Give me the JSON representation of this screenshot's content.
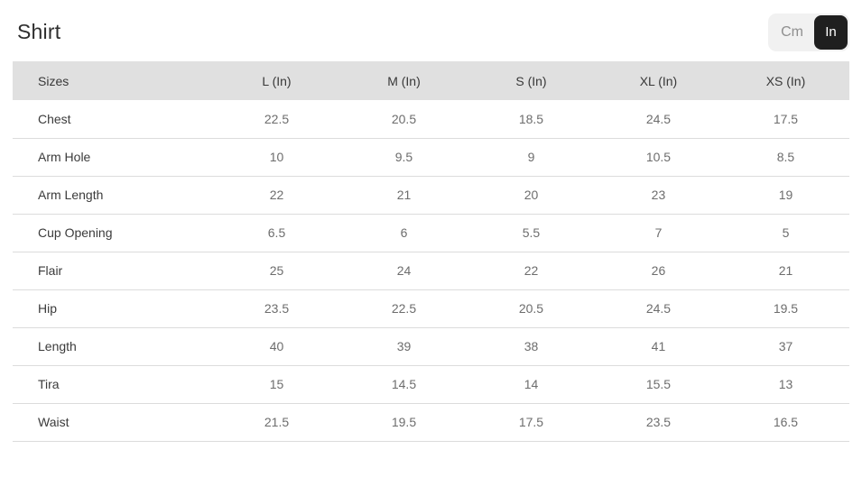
{
  "page": {
    "title": "Shirt"
  },
  "unit_toggle": {
    "options": [
      {
        "label": "Cm",
        "selected": false
      },
      {
        "label": "In",
        "selected": true
      }
    ]
  },
  "table": {
    "headers": [
      "Sizes",
      "L (In)",
      "M (In)",
      "S (In)",
      "XL (In)",
      "XS (In)"
    ],
    "rows": [
      {
        "label": "Chest",
        "values": [
          "22.5",
          "20.5",
          "18.5",
          "24.5",
          "17.5"
        ]
      },
      {
        "label": "Arm Hole",
        "values": [
          "10",
          "9.5",
          "9",
          "10.5",
          "8.5"
        ]
      },
      {
        "label": "Arm Length",
        "values": [
          "22",
          "21",
          "20",
          "23",
          "19"
        ]
      },
      {
        "label": "Cup Opening",
        "values": [
          "6.5",
          "6",
          "5.5",
          "7",
          "5"
        ]
      },
      {
        "label": "Flair",
        "values": [
          "25",
          "24",
          "22",
          "26",
          "21"
        ]
      },
      {
        "label": "Hip",
        "values": [
          "23.5",
          "22.5",
          "20.5",
          "24.5",
          "19.5"
        ]
      },
      {
        "label": "Length",
        "values": [
          "40",
          "39",
          "38",
          "41",
          "37"
        ]
      },
      {
        "label": "Tira",
        "values": [
          "15",
          "14.5",
          "14",
          "15.5",
          "13"
        ]
      },
      {
        "label": "Waist",
        "values": [
          "21.5",
          "19.5",
          "17.5",
          "23.5",
          "16.5"
        ]
      }
    ]
  },
  "colors": {
    "header_bg": "#e0e0e0",
    "toggle_bg": "#f1f1f1",
    "toggle_active_bg": "#1f1f1f",
    "toggle_active_text": "#ffffff",
    "toggle_inactive_text": "#8f8f8f",
    "row_divider": "#dcdcdc",
    "label_text": "#3b3b3b",
    "value_text": "#6d6d6d"
  }
}
